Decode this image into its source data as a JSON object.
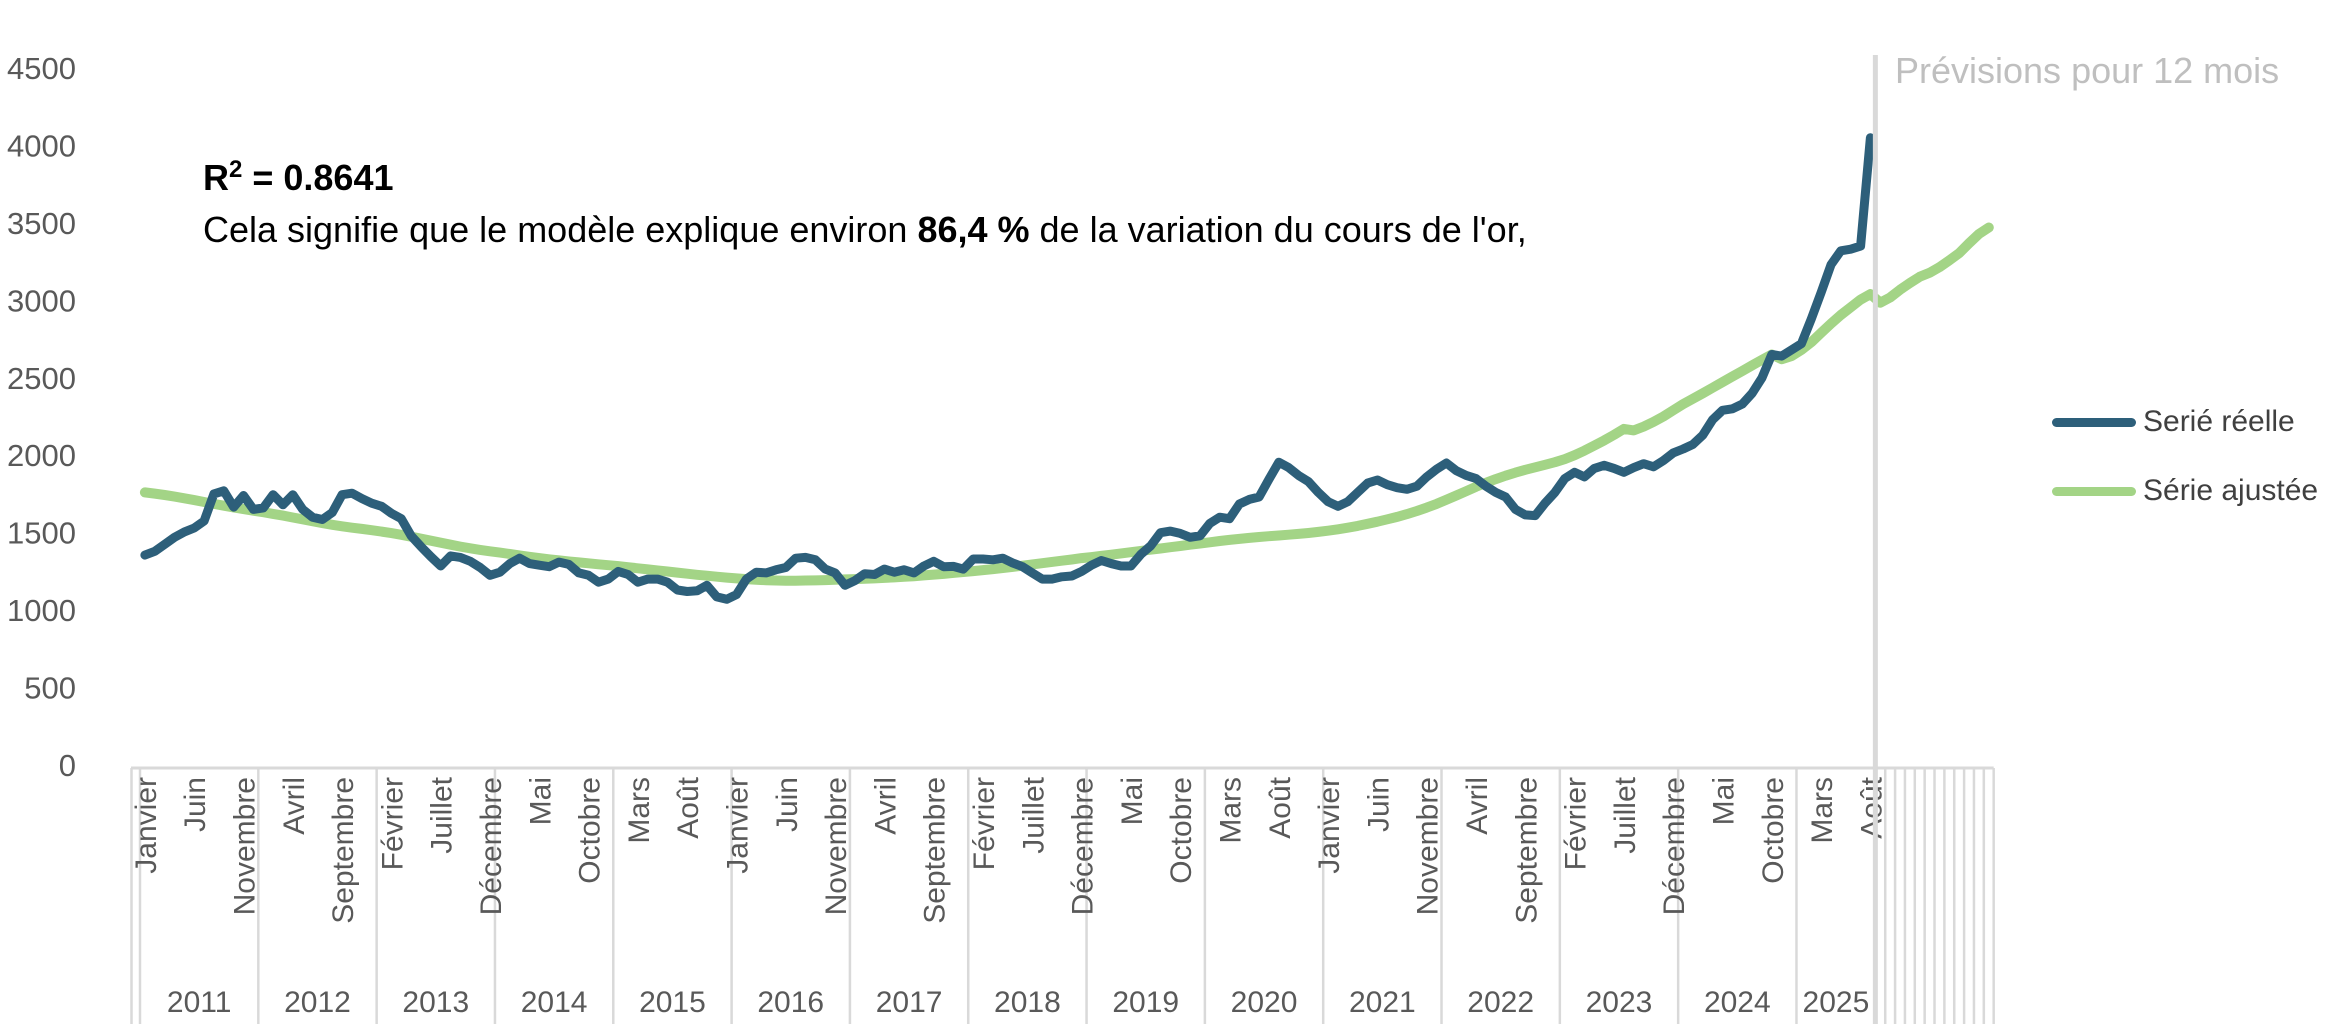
{
  "forecast_label": "Prévisions pour 12 mois",
  "annotation": {
    "r2": {
      "base": "R",
      "sup": "2",
      "value": " = 0.8641"
    },
    "explanation": {
      "pre": "Cela signifie que le modèle explique environ ",
      "bold": "86,4 %",
      "post": " de la variation du cours de l'or,"
    }
  },
  "colors": {
    "actual_line": "#2D5F7A",
    "fitted_line": "#A3D486",
    "axis_text": "#595959",
    "muted_label": "#BFBFBF",
    "grid_border": "#D9D9D9",
    "legend_text": "#404040",
    "background": "#FFFFFF"
  },
  "chart_data": {
    "type": "line",
    "title": "",
    "xlabel": "",
    "ylabel": "",
    "legend_position": "right",
    "grid": false,
    "y_axis": {
      "min": 0,
      "max": 4500,
      "step": 500,
      "ticks": [
        4500,
        4000,
        3500,
        3000,
        2500,
        2000,
        1500,
        1000,
        500,
        0
      ]
    },
    "x_axis": {
      "start": "Janvier 2011",
      "end_actual": "Août 2025",
      "tick_every_months": 5,
      "month_names": [
        "Janvier",
        "Février",
        "Mars",
        "Avril",
        "Mai",
        "Juin",
        "Juillet",
        "Août",
        "Septembre",
        "Octobre",
        "Novembre",
        "Décembre"
      ],
      "years": [
        2011,
        2012,
        2013,
        2014,
        2015,
        2016,
        2017,
        2018,
        2019,
        2020,
        2021,
        2022,
        2023,
        2024,
        2025
      ],
      "months_in_2025_actual": 8,
      "forecast_months": 12
    },
    "forecast_region": {
      "label": "Prévisions pour 12 mois",
      "starts_after_index": 175
    },
    "series": [
      {
        "name": "Serié réelle",
        "color": "#2D5F7A",
        "start": "2011-01",
        "values": [
          1355,
          1380,
          1425,
          1470,
          1505,
          1530,
          1575,
          1750,
          1770,
          1665,
          1740,
          1650,
          1660,
          1745,
          1680,
          1745,
          1650,
          1600,
          1585,
          1630,
          1745,
          1755,
          1720,
          1690,
          1670,
          1625,
          1590,
          1480,
          1410,
          1345,
          1285,
          1350,
          1340,
          1315,
          1275,
          1225,
          1245,
          1300,
          1335,
          1300,
          1290,
          1280,
          1310,
          1295,
          1240,
          1225,
          1180,
          1200,
          1250,
          1230,
          1180,
          1200,
          1200,
          1180,
          1130,
          1120,
          1125,
          1160,
          1085,
          1070,
          1100,
          1200,
          1245,
          1240,
          1260,
          1275,
          1335,
          1340,
          1325,
          1265,
          1240,
          1160,
          1190,
          1235,
          1230,
          1265,
          1245,
          1260,
          1240,
          1285,
          1315,
          1280,
          1282,
          1265,
          1330,
          1330,
          1325,
          1335,
          1305,
          1280,
          1240,
          1200,
          1200,
          1215,
          1220,
          1250,
          1290,
          1320,
          1300,
          1285,
          1285,
          1360,
          1415,
          1500,
          1510,
          1495,
          1470,
          1480,
          1560,
          1600,
          1590,
          1685,
          1715,
          1730,
          1845,
          1955,
          1920,
          1870,
          1830,
          1760,
          1700,
          1670,
          1700,
          1760,
          1820,
          1840,
          1810,
          1790,
          1780,
          1800,
          1860,
          1910,
          1950,
          1900,
          1870,
          1850,
          1800,
          1760,
          1730,
          1650,
          1615,
          1610,
          1690,
          1760,
          1850,
          1890,
          1860,
          1915,
          1935,
          1915,
          1890,
          1920,
          1945,
          1925,
          1965,
          2015,
          2040,
          2070,
          2130,
          2230,
          2290,
          2300,
          2330,
          2400,
          2500,
          2650,
          2640,
          2680,
          2720,
          2880,
          3050,
          3230,
          3320,
          3330,
          3350,
          4050
        ]
      },
      {
        "name": "Série ajustée",
        "color": "#A3D486",
        "start": "2011-01",
        "includes_forecast_last_n": 12,
        "values": [
          1760,
          1752,
          1743,
          1733,
          1722,
          1710,
          1698,
          1686,
          1674,
          1663,
          1652,
          1642,
          1632,
          1621,
          1610,
          1598,
          1586,
          1574,
          1562,
          1551,
          1541,
          1532,
          1524,
          1516,
          1507,
          1497,
          1486,
          1474,
          1461,
          1448,
          1435,
          1422,
          1410,
          1399,
          1389,
          1380,
          1371,
          1362,
          1353,
          1344,
          1336,
          1328,
          1321,
          1314,
          1308,
          1302,
          1296,
          1290,
          1284,
          1277,
          1270,
          1263,
          1256,
          1249,
          1242,
          1235,
          1228,
          1222,
          1216,
          1210,
          1205,
          1200,
          1196,
          1193,
          1191,
          1190,
          1190,
          1191,
          1192,
          1194,
          1196,
          1198,
          1200,
          1202,
          1205,
          1208,
          1211,
          1215,
          1219,
          1224,
          1229,
          1234,
          1240,
          1246,
          1252,
          1258,
          1265,
          1272,
          1279,
          1287,
          1295,
          1303,
          1311,
          1319,
          1327,
          1336,
          1342,
          1350,
          1358,
          1366,
          1374,
          1382,
          1390,
          1398,
          1406,
          1414,
          1422,
          1430,
          1438,
          1446,
          1453,
          1460,
          1466,
          1472,
          1477,
          1482,
          1487,
          1492,
          1498,
          1505,
          1513,
          1522,
          1532,
          1544,
          1557,
          1571,
          1586,
          1602,
          1620,
          1640,
          1662,
          1686,
          1712,
          1740,
          1768,
          1796,
          1822,
          1846,
          1868,
          1888,
          1906,
          1922,
          1938,
          1955,
          1975,
          2000,
          2030,
          2062,
          2096,
          2132,
          2170,
          2160,
          2185,
          2215,
          2250,
          2290,
          2330,
          2365,
          2400,
          2436,
          2472,
          2508,
          2544,
          2580,
          2616,
          2650,
          2620,
          2640,
          2680,
          2730,
          2790,
          2850,
          2905,
          2955,
          3005,
          3040,
          2985,
          3018,
          3068,
          3112,
          3152,
          3178,
          3214,
          3258,
          3305,
          3368,
          3428,
          3470
        ]
      }
    ]
  }
}
